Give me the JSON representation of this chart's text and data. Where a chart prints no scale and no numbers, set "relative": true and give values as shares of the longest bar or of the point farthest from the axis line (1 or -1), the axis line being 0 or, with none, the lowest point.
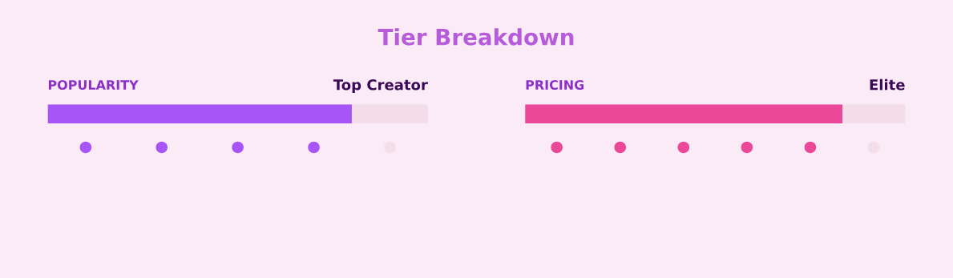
{
  "chart_data": [
    {
      "type": "bar",
      "title": "Tier Breakdown",
      "subtitle": "POPULARITY",
      "annotations": [
        "Top Creator"
      ],
      "orientation": "horizontal",
      "stacked": true,
      "relative": true,
      "categories": [
        null
      ],
      "series": [
        {
          "color": "#a855f7",
          "values": [
            0.8
          ]
        },
        {
          "color": "#f3dde8",
          "values": [
            0.2
          ]
        }
      ]
    },
    {
      "type": "other",
      "colors": [
        "#a855f7",
        "#a855f7",
        "#a855f7",
        "#a855f7",
        "#f3dde8"
      ]
    },
    {
      "type": "bar",
      "subtitle": "PRICING",
      "annotations": [
        "Elite"
      ],
      "orientation": "horizontal",
      "stacked": true,
      "relative": true,
      "categories": [
        null
      ],
      "series": [
        {
          "color": "#ec4899",
          "values": [
            0.835
          ]
        },
        {
          "color": "#f3dde8",
          "values": [
            0.165
          ]
        }
      ]
    },
    {
      "type": "other",
      "colors": [
        "#ec4899",
        "#ec4899",
        "#ec4899",
        "#ec4899",
        "#ec4899",
        "#f3dde8"
      ]
    }
  ]
}
